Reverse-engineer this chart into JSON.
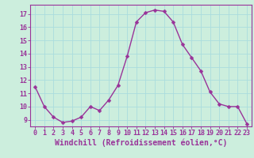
{
  "x": [
    0,
    1,
    2,
    3,
    4,
    5,
    6,
    7,
    8,
    9,
    10,
    11,
    12,
    13,
    14,
    15,
    16,
    17,
    18,
    19,
    20,
    21,
    22,
    23
  ],
  "y": [
    11.5,
    10.0,
    9.2,
    8.8,
    8.9,
    9.2,
    10.0,
    9.7,
    10.5,
    11.6,
    13.8,
    16.4,
    17.1,
    17.3,
    17.2,
    16.4,
    14.7,
    13.7,
    12.7,
    11.1,
    10.2,
    10.0,
    10.0,
    8.7
  ],
  "line_color": "#993399",
  "marker": "D",
  "marker_size": 2.5,
  "linewidth": 1.0,
  "xlabel": "Windchill (Refroidissement éolien,°C)",
  "xlabel_fontsize": 7.0,
  "ytick_labels": [
    "9",
    "10",
    "11",
    "12",
    "13",
    "14",
    "15",
    "16",
    "17"
  ],
  "ytick_values": [
    9,
    10,
    11,
    12,
    13,
    14,
    15,
    16,
    17
  ],
  "ylim": [
    8.5,
    17.7
  ],
  "xlim": [
    -0.5,
    23.5
  ],
  "xtick_values": [
    0,
    1,
    2,
    3,
    4,
    5,
    6,
    7,
    8,
    9,
    10,
    11,
    12,
    13,
    14,
    15,
    16,
    17,
    18,
    19,
    20,
    21,
    22,
    23
  ],
  "grid_color": "#aadddd",
  "background_color": "#cceedd",
  "tick_fontsize": 6.0,
  "spine_color": "#993399"
}
